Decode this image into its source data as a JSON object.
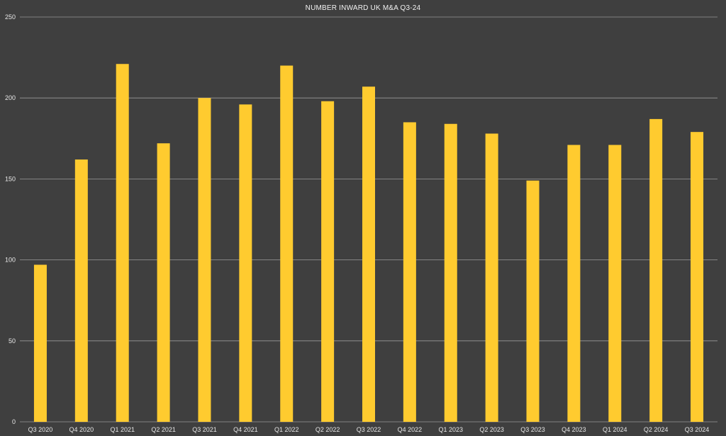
{
  "chart_data": {
    "type": "bar",
    "title": "NUMBER INWARD UK M&A Q3-24",
    "xlabel": "",
    "ylabel": "",
    "ylim": [
      0,
      250
    ],
    "yticks": [
      0,
      50,
      100,
      150,
      200,
      250
    ],
    "grid": true,
    "categories": [
      "Q3 2020",
      "Q4 2020",
      "Q1 2021",
      "Q2 2021",
      "Q3 2021",
      "Q4 2021",
      "Q1 2022",
      "Q2 2022",
      "Q3 2022",
      "Q4 2022",
      "Q1 2023",
      "Q2 2023",
      "Q3 2023",
      "Q4 2023",
      "Q1 2024",
      "Q2 2024",
      "Q3 2024"
    ],
    "values": [
      97,
      162,
      221,
      172,
      200,
      196,
      220,
      198,
      207,
      185,
      184,
      178,
      149,
      171,
      171,
      187,
      179
    ],
    "colors": {
      "background": "#3f3f3f",
      "bar": "#ffcb2f",
      "grid": "#9a9a9a",
      "text": "#e6e6e6"
    }
  }
}
